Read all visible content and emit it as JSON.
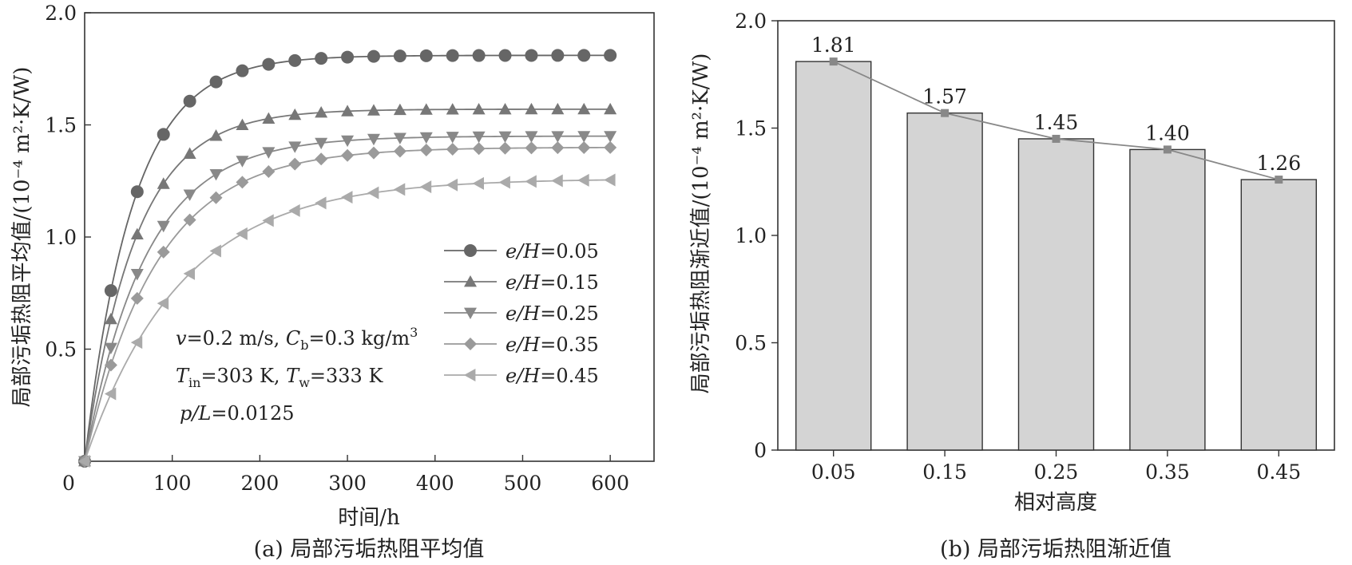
{
  "chart_data": [
    {
      "type": "line",
      "ylabel": "局部污垢热阻平均值/(10⁻⁴ m²·K/W)",
      "xlabel": "时间/h",
      "caption": "(a) 局部污垢热阻平均值",
      "xlim": [
        0,
        650
      ],
      "ylim": [
        0,
        2.0
      ],
      "x_ticks": [
        "100",
        "200",
        "300",
        "400",
        "500",
        "600"
      ],
      "x_origin_label": "0",
      "y_ticks": [
        "0.5",
        "1.0",
        "1.5",
        "2.0"
      ],
      "x": [
        0,
        30,
        60,
        90,
        120,
        150,
        180,
        210,
        240,
        270,
        300,
        330,
        360,
        390,
        420,
        450,
        480,
        510,
        540,
        570,
        600
      ],
      "series": [
        {
          "name": "e/H=0.05",
          "label_italic": "e/H",
          "label_value": "=0.05",
          "marker": "circle",
          "color": "#666666",
          "asymptote": 1.81,
          "tau": 55
        },
        {
          "name": "e/H=0.15",
          "label_italic": "e/H",
          "label_value": "=0.15",
          "marker": "triangle-up",
          "color": "#777777",
          "asymptote": 1.57,
          "tau": 58
        },
        {
          "name": "e/H=0.25",
          "label_italic": "e/H",
          "label_value": "=0.25",
          "marker": "triangle-down",
          "color": "#888888",
          "asymptote": 1.45,
          "tau": 70
        },
        {
          "name": "e/H=0.35",
          "label_italic": "e/H",
          "label_value": "=0.35",
          "marker": "diamond",
          "color": "#9a9a9a",
          "asymptote": 1.4,
          "tau": 82
        },
        {
          "name": "e/H=0.45",
          "label_italic": "e/H",
          "label_value": "=0.45",
          "marker": "triangle-left",
          "color": "#aaaaaa",
          "asymptote": 1.26,
          "tau": 110
        }
      ],
      "annotation": {
        "line1": {
          "v": "v",
          "v_rest": "=0.2 m/s, ",
          "c": "C",
          "c_sub": "b",
          "c_rest": "=0.3 kg/m",
          "c_sup": "3"
        },
        "line2": {
          "t1": "T",
          "t1_sub": "in",
          "t1_rest": "=303 K, ",
          "t2": "T",
          "t2_sub": "w",
          "t2_rest": "=333 K"
        },
        "line3": {
          "p": "p/L",
          "rest": "=0.0125"
        }
      }
    },
    {
      "type": "bar",
      "ylabel": "局部污垢热阻渐近值/(10⁻⁴ m²·K/W)",
      "xlabel": "相对高度",
      "caption": "(b) 局部污垢热阻渐近值",
      "categories": [
        "0.05",
        "0.15",
        "0.25",
        "0.35",
        "0.45"
      ],
      "values": [
        1.81,
        1.57,
        1.45,
        1.4,
        1.26
      ],
      "value_labels": [
        "1.81",
        "1.57",
        "1.45",
        "1.40",
        "1.26"
      ],
      "ylim": [
        0,
        2.0
      ],
      "y_ticks": [
        "0",
        "0.5",
        "1.0",
        "1.5",
        "2.0"
      ],
      "bar_color": "#d4d4d4",
      "line_color": "#888888"
    }
  ]
}
